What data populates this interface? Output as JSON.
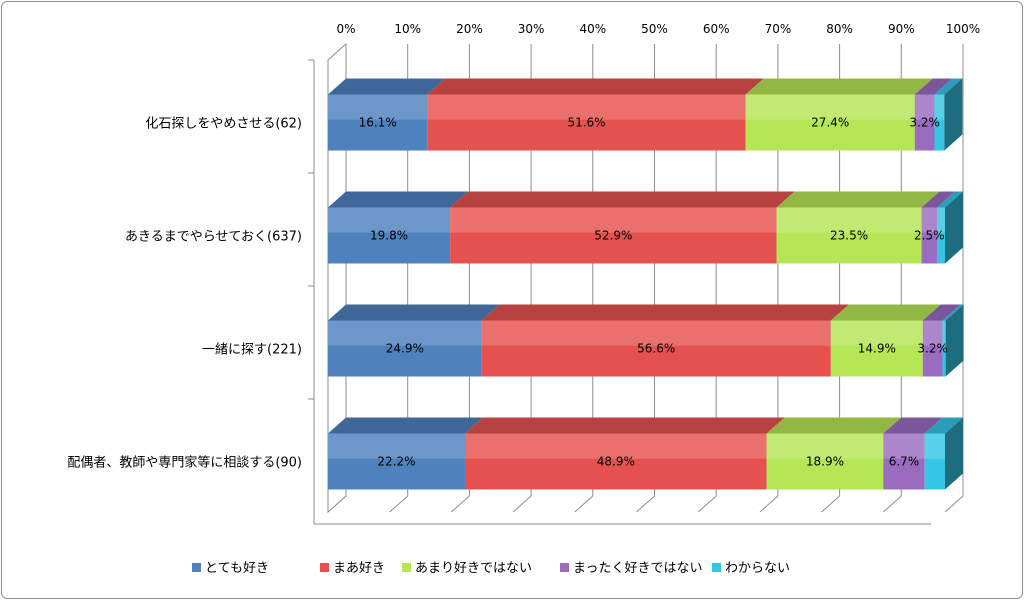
{
  "chart_data": {
    "type": "bar",
    "orientation": "horizontal",
    "stacked": "percent",
    "three_d": true,
    "categories": [
      "化石探しをやめさせる(62)",
      "あきるまでやらせておく(637)",
      "一緒に探す(221)",
      "配偶者、教師や専門家等に相談する(90)"
    ],
    "series": [
      {
        "name": "とても好き",
        "color": "#4f81bd",
        "values": [
          16.1,
          19.8,
          24.9,
          22.2
        ]
      },
      {
        "name": "まあ好き",
        "color": "#e5514e",
        "values": [
          51.6,
          52.9,
          56.6,
          48.9
        ]
      },
      {
        "name": "あまり好きではない",
        "color": "#b5e655",
        "values": [
          27.4,
          23.5,
          14.9,
          18.9
        ]
      },
      {
        "name": "まったく好きではない",
        "color": "#9a6cc0",
        "values": [
          3.2,
          2.5,
          3.2,
          6.7
        ]
      },
      {
        "name": "わからない",
        "color": "#35c6e6",
        "values": [
          1.6,
          1.3,
          0.5,
          3.3
        ]
      }
    ],
    "data_labels": [
      [
        "16.1%",
        "51.6%",
        "27.4%",
        "3.2%",
        ""
      ],
      [
        "19.8%",
        "52.9%",
        "23.5%",
        "2.5%",
        ""
      ],
      [
        "24.9%",
        "56.6%",
        "14.9%",
        "3.2%",
        ""
      ],
      [
        "22.2%",
        "48.9%",
        "18.9%",
        "6.7%",
        ""
      ]
    ],
    "x_ticks": [
      "0%",
      "10%",
      "20%",
      "30%",
      "40%",
      "50%",
      "60%",
      "70%",
      "80%",
      "90%",
      "100%"
    ],
    "xlim": [
      0,
      100
    ],
    "xaxis_position": "top",
    "grid": true,
    "legend_position": "bottom"
  }
}
